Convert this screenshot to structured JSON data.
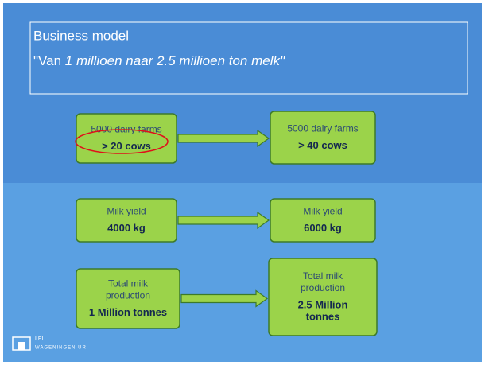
{
  "header": {
    "title": "Business model",
    "subtitle": [
      "\"Van",
      "1 millioen naar 2.5 millioen ton melk\""
    ]
  },
  "rows": [
    {
      "from": {
        "label": [
          "5000 dairy farms"
        ],
        "value": [
          "> 20 cows"
        ]
      },
      "to": {
        "label": [
          "5000 dairy farms"
        ],
        "value": [
          "> 40 cows"
        ]
      }
    },
    {
      "from": {
        "label": [
          "Milk yield"
        ],
        "value": [
          "4000 kg"
        ]
      },
      "to": {
        "label": [
          "Milk yield"
        ],
        "value": [
          "6000 kg"
        ]
      }
    },
    {
      "from": {
        "label": [
          "Total milk",
          "production"
        ],
        "value": [
          "1 Million tonnes"
        ]
      },
      "to": {
        "label": [
          "Total milk",
          "production"
        ],
        "value": [
          "2.5 Million",
          "tonnes"
        ]
      }
    }
  ],
  "logo": {
    "name": "LEI",
    "org": "WAGENINGEN UR"
  }
}
